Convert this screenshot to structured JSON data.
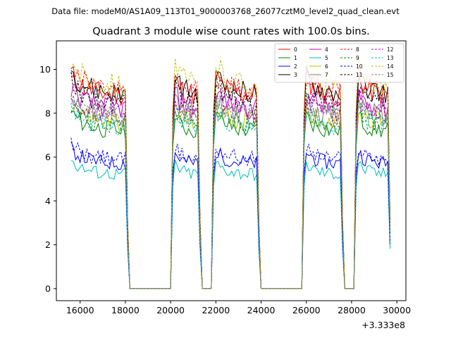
{
  "chart_data": {
    "type": "line",
    "suptitle": "Data file: modeM0/AS1A09_113T01_9000003768_26077cztM0_level2_quad_clean.evt",
    "title": "Quadrant 3 module wise count rates with 100.0s bins.",
    "xlabel": "",
    "ylabel": "",
    "x_offset_label": "+3.333e8",
    "xlim": [
      14950,
      30400
    ],
    "ylim": [
      -0.55,
      11.3
    ],
    "x_ticks": [
      16000,
      18000,
      20000,
      22000,
      24000,
      26000,
      28000,
      30000
    ],
    "x_tick_labels": [
      "16000",
      "18000",
      "20000",
      "22000",
      "24000",
      "26000",
      "28000",
      "30000"
    ],
    "y_ticks": [
      0,
      2,
      4,
      6,
      8,
      10
    ],
    "y_tick_labels": [
      "0",
      "2",
      "4",
      "6",
      "8",
      "10"
    ],
    "legend_position": "top-right",
    "segments": [
      [
        15600,
        18100
      ],
      [
        20100,
        21300
      ],
      [
        21900,
        23900
      ],
      [
        25900,
        27600
      ],
      [
        28200,
        29700
      ]
    ],
    "series": [
      {
        "name": "0",
        "level": 8.8,
        "color": "#ff0000",
        "dashed": false
      },
      {
        "name": "1",
        "level": 7.2,
        "color": "#008000",
        "dashed": false
      },
      {
        "name": "2",
        "level": 5.7,
        "color": "#0000ff",
        "dashed": false
      },
      {
        "name": "3",
        "level": 8.9,
        "color": "#000000",
        "dashed": false
      },
      {
        "name": "4",
        "level": 8.2,
        "color": "#c000c0",
        "dashed": false
      },
      {
        "name": "5",
        "level": 5.2,
        "color": "#00bfbf",
        "dashed": false
      },
      {
        "name": "6",
        "level": 7.6,
        "color": "#bfbf00",
        "dashed": false
      },
      {
        "name": "7",
        "level": 7.9,
        "color": "#808080",
        "dashed": false
      },
      {
        "name": "8",
        "level": 9.0,
        "color": "#ff0000",
        "dashed": true
      },
      {
        "name": "9",
        "level": 7.5,
        "color": "#008000",
        "dashed": true
      },
      {
        "name": "10",
        "level": 5.9,
        "color": "#0000ff",
        "dashed": true
      },
      {
        "name": "11",
        "level": 8.4,
        "color": "#000000",
        "dashed": true
      },
      {
        "name": "12",
        "level": 8.0,
        "color": "#c000c0",
        "dashed": true
      },
      {
        "name": "13",
        "level": 7.4,
        "color": "#00bfbf",
        "dashed": true
      },
      {
        "name": "14",
        "level": 9.3,
        "color": "#bfbf00",
        "dashed": true
      },
      {
        "name": "15",
        "level": 7.8,
        "color": "#808080",
        "dashed": true
      }
    ]
  }
}
